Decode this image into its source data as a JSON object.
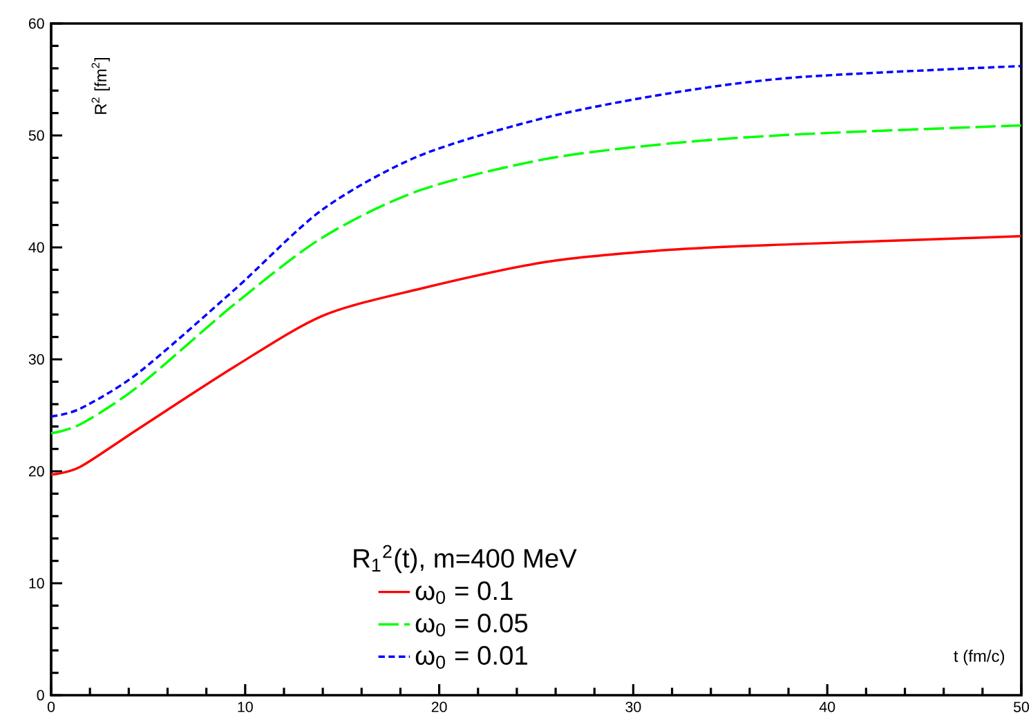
{
  "chart_data": {
    "type": "line",
    "xlabel": "t (fm/c)",
    "ylabel": "R$^{2}$ [fm$^{2}$]",
    "legend_title": "R$_{1}$$^{2}$(t), m=400 MeV",
    "xlim": [
      0,
      50
    ],
    "ylim": [
      0,
      60
    ],
    "xticks": [
      0,
      10,
      20,
      30,
      40,
      50
    ],
    "yticks": [
      0,
      10,
      20,
      30,
      40,
      50,
      60
    ],
    "x": [
      0,
      1.5,
      4.5,
      9.5,
      14,
      19,
      25.5,
      32,
      38.5,
      50
    ],
    "series": [
      {
        "name": "ω$_{0}$ = 0.1",
        "color": "#ff0000",
        "line_style": "solid",
        "values": [
          19.7,
          20.4,
          23.8,
          29.4,
          33.9,
          36.3,
          38.7,
          39.8,
          40.3,
          41.0
        ]
      },
      {
        "name": "ω$_{0}$ = 0.05",
        "color": "#00ff00",
        "line_style": "dashed",
        "values": [
          23.4,
          24.2,
          27.6,
          35.0,
          40.9,
          45.1,
          47.9,
          49.3,
          50.1,
          50.9
        ]
      },
      {
        "name": "ω$_{0}$ = 0.01",
        "color": "#0000ff",
        "line_style": "dotted",
        "values": [
          24.9,
          25.6,
          28.8,
          36.3,
          43.4,
          48.2,
          51.6,
          53.8,
          55.2,
          56.2
        ]
      }
    ],
    "legend": "bottom",
    "grid": false,
    "marker": "none"
  }
}
